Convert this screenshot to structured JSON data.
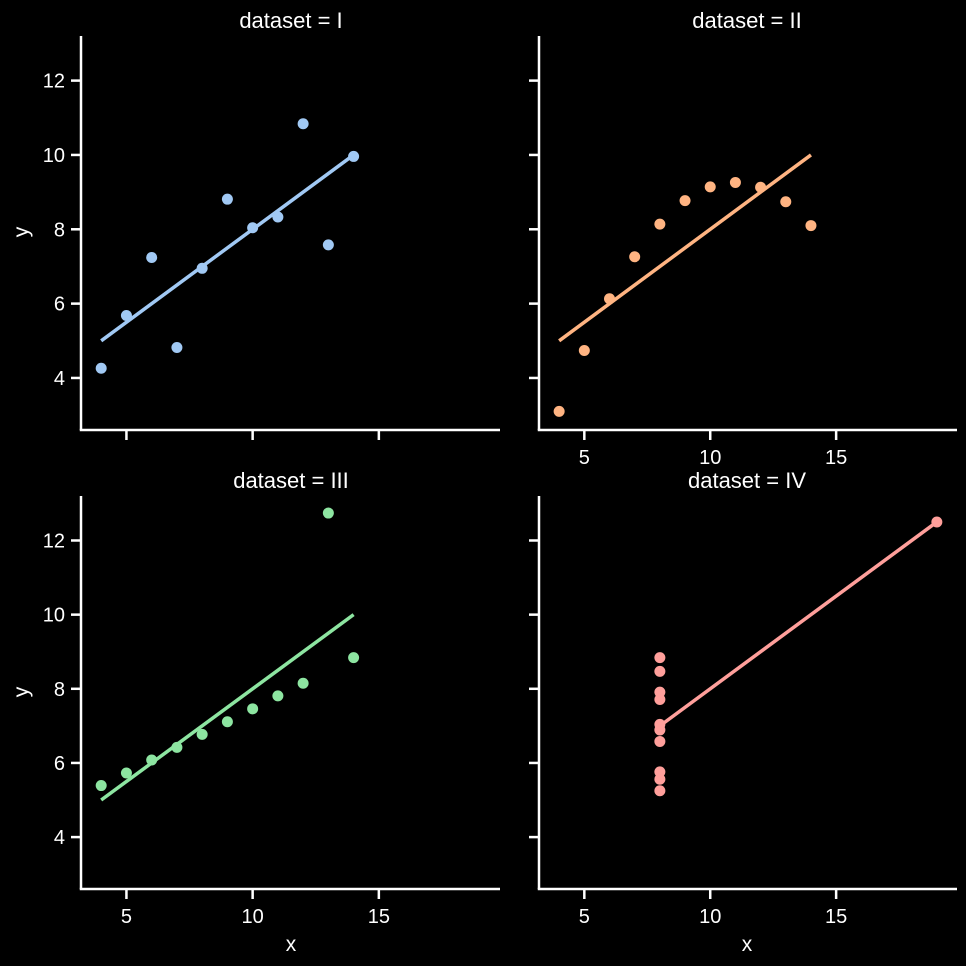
{
  "colors": {
    "background": "#000000",
    "axes": "#ffffff",
    "text": "#ffffff"
  },
  "chart_data": [
    {
      "type": "scatter",
      "title": "dataset = I",
      "xlabel": "",
      "ylabel": "y",
      "color": "#a1c9f4",
      "x": [
        10,
        8,
        13,
        9,
        11,
        14,
        6,
        4,
        12,
        7,
        5
      ],
      "y": [
        8.04,
        6.95,
        7.58,
        8.81,
        8.33,
        9.96,
        7.24,
        4.26,
        10.84,
        4.82,
        5.68
      ],
      "fit": {
        "x": [
          4,
          14
        ],
        "y": [
          5.0,
          10.0
        ]
      },
      "xlim": [
        3.2,
        19.8
      ],
      "ylim": [
        2.6,
        13.2
      ],
      "xticks": [],
      "yticks": [
        4,
        6,
        8,
        10,
        12
      ],
      "xtick_marks": [
        5,
        10,
        15
      ],
      "show_xtick_labels": false,
      "show_ytick_labels": true
    },
    {
      "type": "scatter",
      "title": "dataset = II",
      "xlabel": "",
      "ylabel": "",
      "color": "#ffb482",
      "x": [
        10,
        8,
        13,
        9,
        11,
        14,
        6,
        4,
        12,
        7,
        5
      ],
      "y": [
        9.14,
        8.14,
        8.74,
        8.77,
        9.26,
        8.1,
        6.13,
        3.1,
        9.13,
        7.26,
        4.74
      ],
      "fit": {
        "x": [
          4,
          14
        ],
        "y": [
          5.0,
          10.0
        ]
      },
      "xlim": [
        3.2,
        19.8
      ],
      "ylim": [
        2.6,
        13.2
      ],
      "xticks": [
        5,
        10,
        15
      ],
      "yticks": [
        4,
        6,
        8,
        10,
        12
      ],
      "xtick_marks": [
        5,
        10,
        15
      ],
      "show_xtick_labels": true,
      "show_ytick_labels": false
    },
    {
      "type": "scatter",
      "title": "dataset = III",
      "xlabel": "x",
      "ylabel": "y",
      "color": "#8de5a1",
      "x": [
        10,
        8,
        13,
        9,
        11,
        14,
        6,
        4,
        12,
        7,
        5
      ],
      "y": [
        7.46,
        6.77,
        12.74,
        7.11,
        7.81,
        8.84,
        6.08,
        5.39,
        8.15,
        6.42,
        5.73
      ],
      "fit": {
        "x": [
          4,
          14
        ],
        "y": [
          5.0,
          10.0
        ]
      },
      "xlim": [
        3.2,
        19.8
      ],
      "ylim": [
        2.6,
        13.2
      ],
      "xticks": [
        5,
        10,
        15
      ],
      "yticks": [
        4,
        6,
        8,
        10,
        12
      ],
      "xtick_marks": [
        5,
        10,
        15
      ],
      "show_xtick_labels": true,
      "show_ytick_labels": true
    },
    {
      "type": "scatter",
      "title": "dataset = IV",
      "xlabel": "x",
      "ylabel": "",
      "color": "#ff9f9b",
      "x": [
        8,
        8,
        8,
        8,
        8,
        8,
        8,
        19,
        8,
        8,
        8
      ],
      "y": [
        6.58,
        5.76,
        7.71,
        8.84,
        8.47,
        7.04,
        5.25,
        12.5,
        5.56,
        7.91,
        6.89
      ],
      "fit": {
        "x": [
          8,
          19
        ],
        "y": [
          7.0,
          12.5
        ]
      },
      "xlim": [
        3.2,
        19.8
      ],
      "ylim": [
        2.6,
        13.2
      ],
      "xticks": [
        5,
        10,
        15
      ],
      "yticks": [
        4,
        6,
        8,
        10,
        12
      ],
      "xtick_marks": [
        5,
        10,
        15
      ],
      "show_xtick_labels": true,
      "show_ytick_labels": false
    }
  ]
}
